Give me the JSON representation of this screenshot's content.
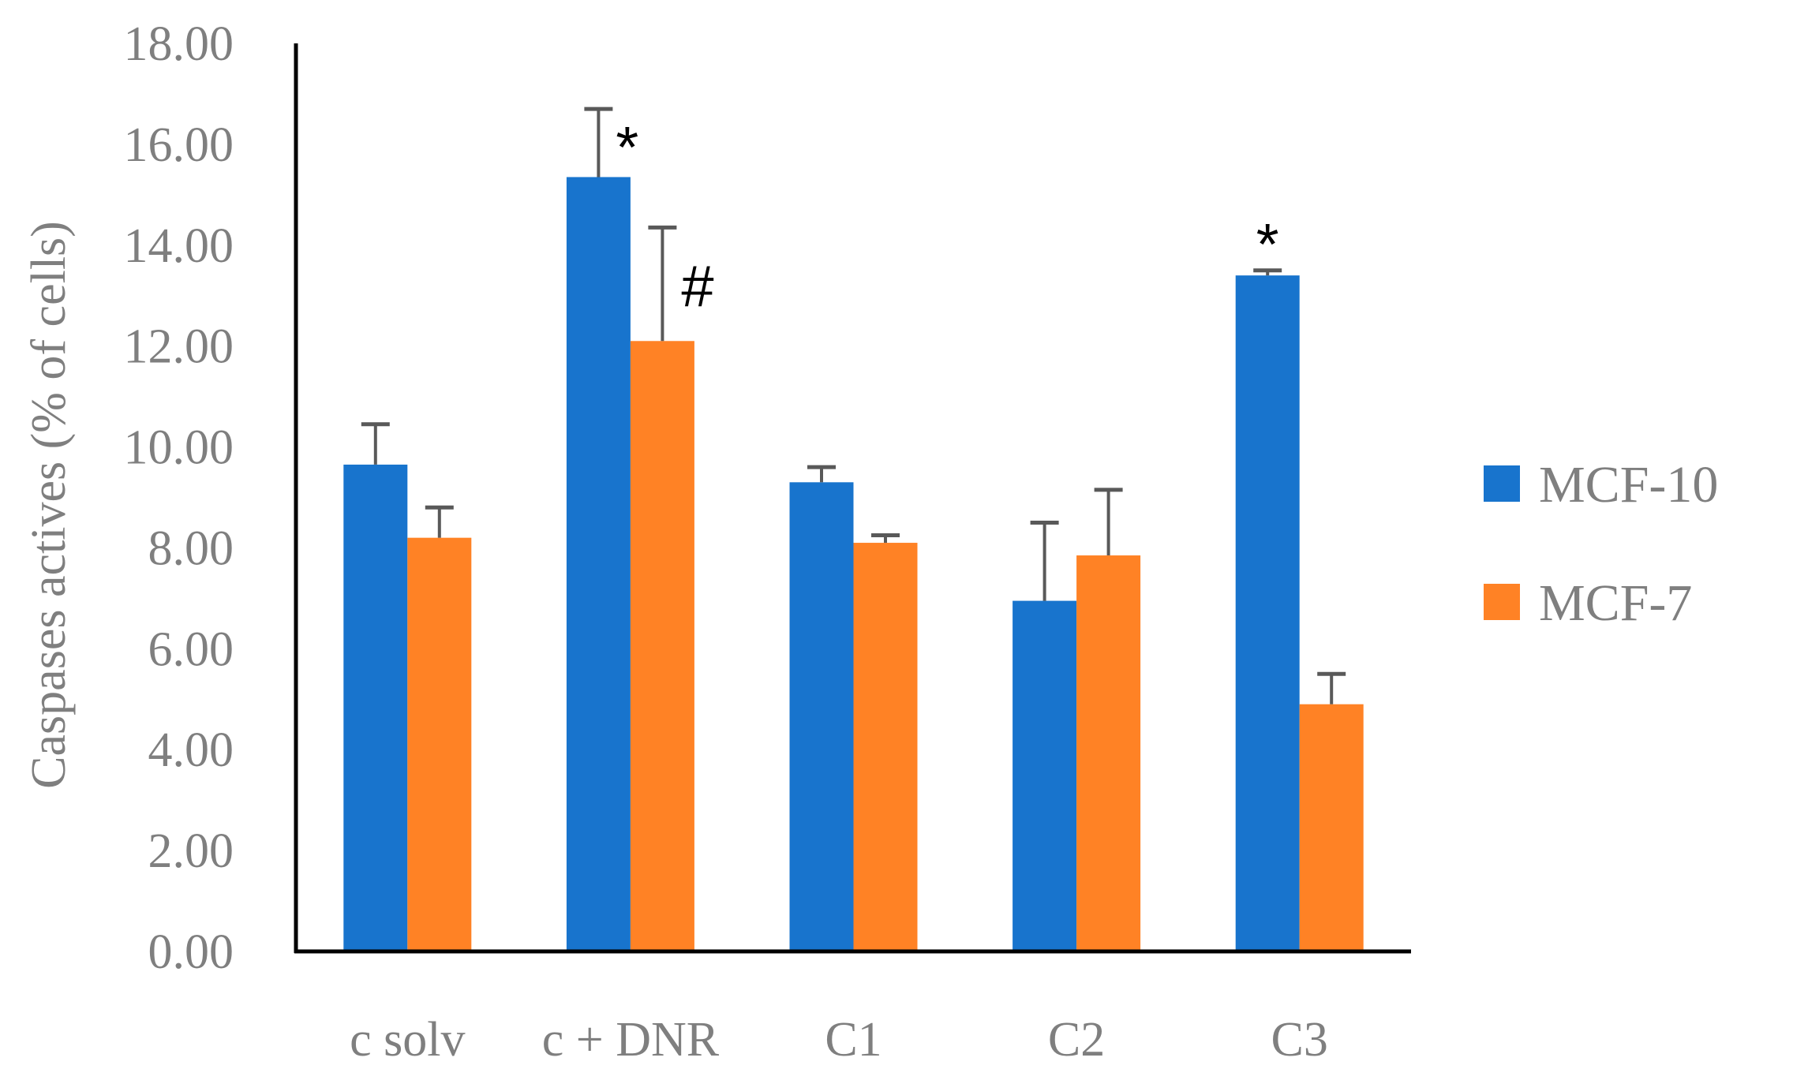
{
  "chart_data": {
    "type": "bar",
    "title": "",
    "xlabel": "",
    "ylabel": "Caspases actives (% of cells)",
    "ylim": [
      0,
      18
    ],
    "ytick_step": 2,
    "ytick_decimals": 2,
    "grid": false,
    "legend_position": "right",
    "categories": [
      "c solv",
      "c + DNR",
      "C1",
      "C2",
      "C3"
    ],
    "series": [
      {
        "name": "MCF-10",
        "color": "#1874CD",
        "values": [
          9.65,
          15.35,
          9.3,
          6.95,
          13.4
        ],
        "errors": [
          0.8,
          1.35,
          0.3,
          1.55,
          0.1
        ],
        "annotations": [
          "",
          "*",
          "",
          "",
          "*"
        ]
      },
      {
        "name": "MCF-7",
        "color": "#FF8225",
        "values": [
          8.2,
          12.1,
          8.1,
          7.85,
          4.9
        ],
        "errors": [
          0.6,
          2.25,
          0.15,
          1.3,
          0.6
        ],
        "annotations": [
          "",
          "#",
          "",
          "",
          ""
        ]
      }
    ],
    "error_bar_color": "#595959",
    "axis_color": "#000000"
  }
}
